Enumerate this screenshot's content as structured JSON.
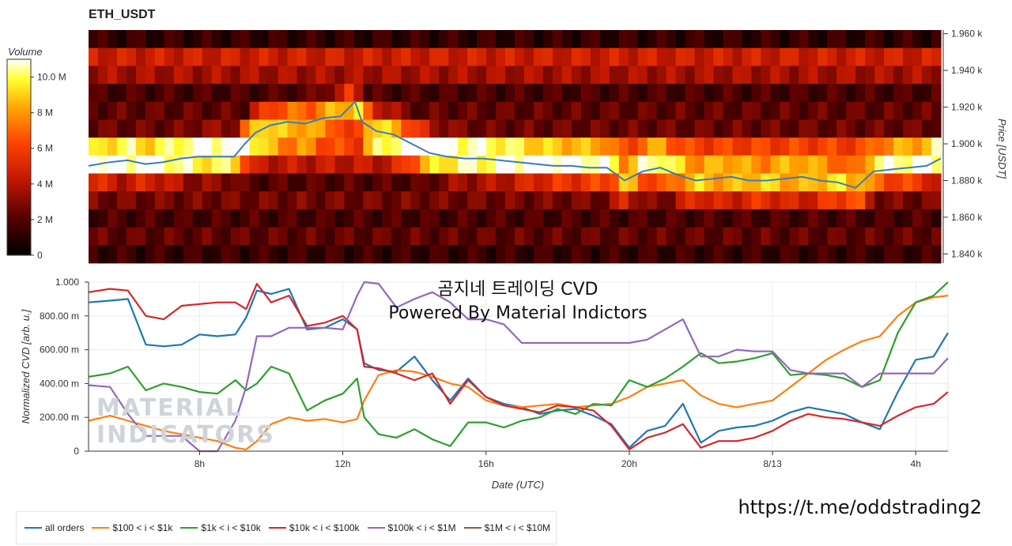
{
  "title": "ETH_USDT",
  "colorbar": {
    "title": "Volume",
    "ticks": [
      "10.0 M",
      "8 M",
      "6 M",
      "4 M",
      "2 M",
      "0"
    ],
    "tick_values": [
      10,
      8,
      6,
      4,
      2,
      0
    ],
    "max": 11
  },
  "heatmap": {
    "y_axis_title": "Price [USDT]",
    "y_ticks": [
      "1.960 k",
      "1.940 k",
      "1.920 k",
      "1.900 k",
      "1.880 k",
      "1.860 k",
      "1.840 k"
    ],
    "y_tick_values": [
      1960,
      1940,
      1920,
      1900,
      1880,
      1860,
      1840
    ],
    "ylim": [
      1835,
      1962
    ],
    "row_base": [
      1.8,
      6.5,
      5.2,
      2.5,
      3.2,
      3.5,
      8.5,
      6.0,
      2.8,
      3.8,
      2.5,
      3.2,
      2.0
    ]
  },
  "watermark": {
    "line1": "곰지네 트레이딩 CVD",
    "line2": "Powered By Material Indictors"
  },
  "logo": {
    "line1": "MATERIAL",
    "line2": "INDICATORS"
  },
  "url": "https://t.me/oddstrading2",
  "chart_data": {
    "type": "line",
    "title": "ETH_USDT",
    "xlabel": "Date (UTC)",
    "ylabel": "Normalized CVD [arb. u.]",
    "x_ticks": [
      "8h",
      "12h",
      "16h",
      "20h",
      "8/13",
      "4h"
    ],
    "x_tick_hours": [
      8,
      12,
      16,
      20,
      24,
      28
    ],
    "x_range_hours": [
      4.9,
      28.9
    ],
    "y_ticks": [
      "1.000",
      "800.00 m",
      "600.00 m",
      "400.00 m",
      "200.00 m",
      "0"
    ],
    "y_tick_values": [
      1,
      0.8,
      0.6,
      0.4,
      0.2,
      0
    ],
    "ylim": [
      0,
      1
    ],
    "price_series": {
      "hours": [
        4.9,
        5.5,
        6,
        6.5,
        7,
        7.5,
        8,
        8.5,
        9,
        9.3,
        9.6,
        10,
        10.5,
        11,
        11.5,
        12,
        12.4,
        12.6,
        13,
        13.5,
        14,
        14.5,
        15,
        15.5,
        16,
        16.5,
        17,
        17.5,
        18,
        18.5,
        19,
        19.5,
        20,
        20.5,
        21,
        21.5,
        22,
        22.5,
        23,
        23.5,
        24,
        24.5,
        25,
        25.5,
        26,
        26.5,
        27,
        27.5,
        28,
        28.5,
        28.9
      ],
      "values": [
        1888,
        1890,
        1891,
        1889,
        1890,
        1892,
        1893,
        1893,
        1893,
        1900,
        1906,
        1910,
        1912,
        1911,
        1914,
        1915,
        1923,
        1912,
        1907,
        1905,
        1900,
        1895,
        1893,
        1892,
        1892,
        1891,
        1890,
        1889,
        1888,
        1888,
        1887,
        1887,
        1880,
        1885,
        1887,
        1883,
        1880,
        1881,
        1882,
        1880,
        1880,
        1881,
        1882,
        1880,
        1879,
        1876,
        1885,
        1886,
        1887,
        1888,
        1892
      ]
    },
    "series": [
      {
        "name": "all orders",
        "color": "#1f77b4",
        "x": [
          4.9,
          5.5,
          6,
          6.5,
          7,
          7.5,
          8,
          8.5,
          9,
          9.3,
          9.6,
          10,
          10.5,
          11,
          11.5,
          12,
          12.4,
          12.6,
          13,
          13.5,
          14,
          14.5,
          15,
          15.5,
          16,
          16.5,
          17,
          17.5,
          18,
          18.5,
          19,
          19.5,
          20,
          20.5,
          21,
          21.5,
          22,
          22.5,
          23,
          23.5,
          24,
          24.5,
          25,
          25.5,
          26,
          26.5,
          27,
          27.5,
          28,
          28.5,
          28.9
        ],
        "y": [
          0.88,
          0.89,
          0.9,
          0.63,
          0.62,
          0.63,
          0.69,
          0.68,
          0.69,
          0.79,
          0.95,
          0.93,
          0.96,
          0.72,
          0.73,
          0.78,
          0.72,
          0.52,
          0.48,
          0.47,
          0.56,
          0.42,
          0.3,
          0.43,
          0.32,
          0.28,
          0.26,
          0.22,
          0.24,
          0.25,
          0.21,
          0.16,
          0.02,
          0.12,
          0.15,
          0.28,
          0.05,
          0.12,
          0.14,
          0.15,
          0.18,
          0.23,
          0.26,
          0.24,
          0.22,
          0.17,
          0.13,
          0.35,
          0.54,
          0.56,
          0.7
        ]
      },
      {
        "name": "$100 < i < $1k",
        "color": "#ff7f0e",
        "x": [
          4.9,
          5.5,
          6,
          6.5,
          7,
          7.5,
          8,
          8.5,
          9,
          9.3,
          9.6,
          10,
          10.5,
          11,
          11.5,
          12,
          12.4,
          12.6,
          13,
          13.5,
          14,
          14.5,
          15,
          15.5,
          16,
          16.5,
          17,
          17.5,
          18,
          18.5,
          19,
          19.5,
          20,
          20.5,
          21,
          21.5,
          22,
          22.5,
          23,
          23.5,
          24,
          24.5,
          25,
          25.5,
          26,
          26.5,
          27,
          27.5,
          28,
          28.5,
          28.9
        ],
        "y": [
          0.18,
          0.21,
          0.18,
          0.15,
          0.12,
          0.1,
          0.08,
          0.06,
          0.02,
          0.01,
          0.06,
          0.16,
          0.2,
          0.18,
          0.19,
          0.17,
          0.19,
          0.3,
          0.45,
          0.48,
          0.47,
          0.44,
          0.4,
          0.38,
          0.3,
          0.27,
          0.26,
          0.27,
          0.28,
          0.26,
          0.27,
          0.28,
          0.32,
          0.38,
          0.4,
          0.42,
          0.33,
          0.28,
          0.26,
          0.28,
          0.3,
          0.38,
          0.46,
          0.54,
          0.6,
          0.65,
          0.68,
          0.8,
          0.88,
          0.91,
          0.92
        ]
      },
      {
        "name": "$1k < i < $10k",
        "color": "#2ca02c",
        "x": [
          4.9,
          5.5,
          6,
          6.5,
          7,
          7.5,
          8,
          8.5,
          9,
          9.3,
          9.6,
          10,
          10.5,
          11,
          11.5,
          12,
          12.4,
          12.6,
          13,
          13.5,
          14,
          14.5,
          15,
          15.5,
          16,
          16.5,
          17,
          17.5,
          18,
          18.5,
          19,
          19.5,
          20,
          20.5,
          21,
          21.5,
          22,
          22.5,
          23,
          23.5,
          24,
          24.5,
          25,
          25.5,
          26,
          26.5,
          27,
          27.5,
          28,
          28.5,
          28.9
        ],
        "y": [
          0.44,
          0.46,
          0.5,
          0.36,
          0.4,
          0.38,
          0.35,
          0.34,
          0.42,
          0.36,
          0.4,
          0.5,
          0.46,
          0.24,
          0.3,
          0.34,
          0.43,
          0.2,
          0.1,
          0.08,
          0.13,
          0.07,
          0.03,
          0.17,
          0.17,
          0.14,
          0.18,
          0.2,
          0.25,
          0.22,
          0.28,
          0.27,
          0.42,
          0.38,
          0.43,
          0.5,
          0.58,
          0.52,
          0.53,
          0.55,
          0.58,
          0.45,
          0.46,
          0.45,
          0.43,
          0.38,
          0.42,
          0.7,
          0.88,
          0.92,
          1.0
        ]
      },
      {
        "name": "$10k < i < $100k",
        "color": "#d62728",
        "x": [
          4.9,
          5.5,
          6,
          6.5,
          7,
          7.5,
          8,
          8.5,
          9,
          9.3,
          9.6,
          10,
          10.5,
          11,
          11.5,
          12,
          12.4,
          12.6,
          13,
          13.5,
          14,
          14.5,
          15,
          15.5,
          16,
          16.5,
          17,
          17.5,
          18,
          18.5,
          19,
          19.5,
          20,
          20.5,
          21,
          21.5,
          22,
          22.5,
          23,
          23.5,
          24,
          24.5,
          25,
          25.5,
          26,
          26.5,
          27,
          27.5,
          28,
          28.5,
          28.9
        ],
        "y": [
          0.94,
          0.96,
          0.95,
          0.8,
          0.78,
          0.86,
          0.87,
          0.88,
          0.88,
          0.84,
          0.99,
          0.88,
          0.92,
          0.74,
          0.76,
          0.8,
          0.72,
          0.5,
          0.49,
          0.46,
          0.42,
          0.46,
          0.28,
          0.42,
          0.32,
          0.27,
          0.25,
          0.23,
          0.27,
          0.26,
          0.24,
          0.15,
          0.01,
          0.08,
          0.11,
          0.16,
          0.02,
          0.06,
          0.06,
          0.08,
          0.12,
          0.18,
          0.22,
          0.2,
          0.19,
          0.17,
          0.15,
          0.21,
          0.26,
          0.28,
          0.35
        ]
      },
      {
        "name": "$100k < i < $1M",
        "color": "#9467bd",
        "x": [
          4.9,
          5.5,
          6,
          6.5,
          7,
          7.5,
          8,
          8.5,
          9,
          9.3,
          9.6,
          10,
          10.5,
          11,
          11.5,
          12,
          12.4,
          12.6,
          13,
          13.5,
          14,
          14.5,
          15,
          15.5,
          16,
          16.5,
          17,
          17.5,
          18,
          18.5,
          19,
          19.5,
          20,
          20.5,
          21,
          21.5,
          22,
          22.5,
          23,
          23.5,
          24,
          24.5,
          25,
          25.5,
          26,
          26.5,
          27,
          27.5,
          28,
          28.5,
          28.9
        ],
        "y": [
          0.39,
          0.38,
          0.22,
          0.09,
          0.09,
          0.09,
          0.0,
          0.0,
          0.18,
          0.38,
          0.68,
          0.68,
          0.73,
          0.73,
          0.73,
          0.72,
          0.92,
          1.0,
          0.99,
          0.85,
          0.9,
          0.94,
          0.88,
          0.78,
          0.78,
          0.75,
          0.64,
          0.64,
          0.64,
          0.64,
          0.64,
          0.64,
          0.64,
          0.66,
          0.72,
          0.78,
          0.56,
          0.56,
          0.6,
          0.59,
          0.59,
          0.48,
          0.46,
          0.46,
          0.46,
          0.38,
          0.46,
          0.46,
          0.46,
          0.46,
          0.55
        ]
      },
      {
        "name": "$1M < i < $10M",
        "color": "#8c564b",
        "x": [],
        "y": []
      }
    ]
  }
}
